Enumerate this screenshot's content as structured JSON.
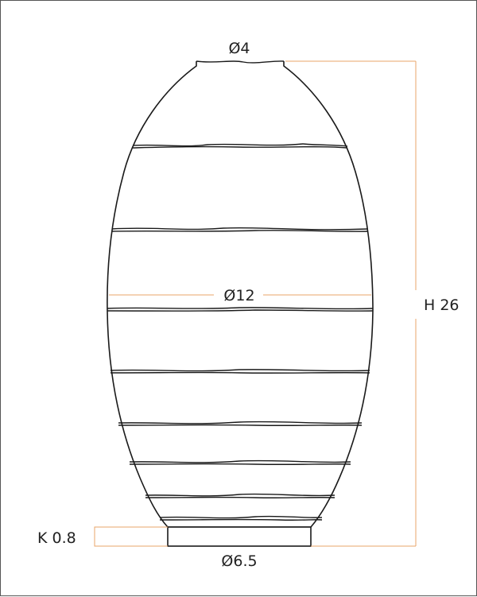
{
  "drawing": {
    "top_diameter": "4",
    "max_diameter": "12",
    "base_diameter": "6.5",
    "height": "H 26",
    "base_height": "K 0.8"
  },
  "colors": {
    "outline": "#1a1a1a",
    "dimension_line": "#e8a46a",
    "text": "#222222",
    "frame": "#555555"
  }
}
